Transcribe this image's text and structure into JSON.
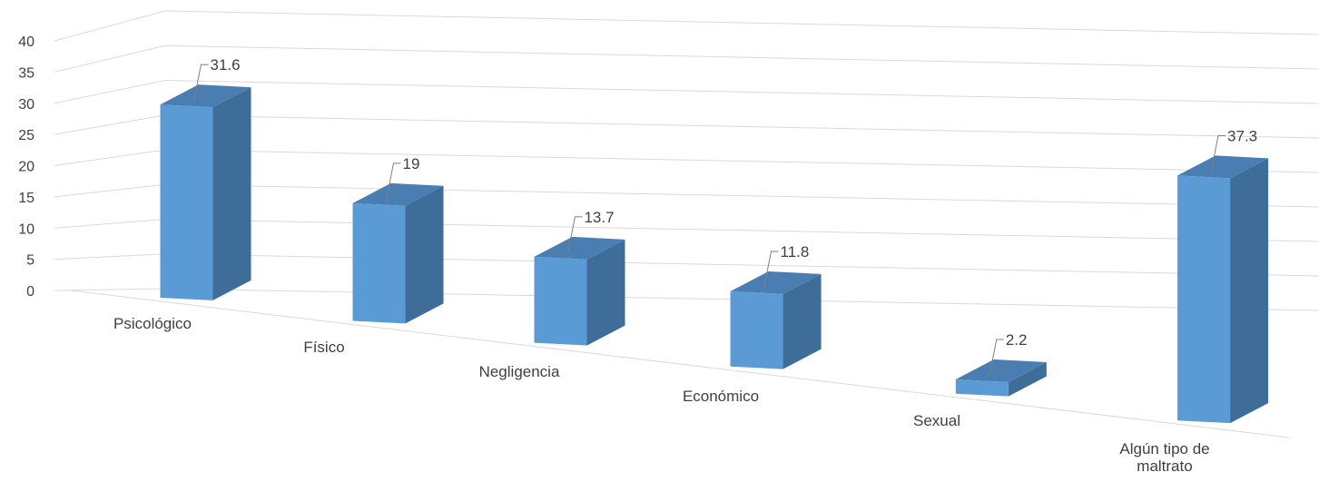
{
  "chart_data": {
    "type": "bar",
    "title": "",
    "xlabel": "",
    "ylabel": "",
    "categories": [
      "Psicológico",
      "Físico",
      "Negligencia",
      "Económico",
      "Sexual",
      "Algún tipo de maltrato"
    ],
    "values": [
      31.6,
      19,
      13.7,
      11.8,
      2.2,
      37.3
    ],
    "y_ticks": [
      "0",
      "5",
      "10",
      "15",
      "20",
      "25",
      "30",
      "35",
      "40"
    ],
    "data_labels": [
      "31.6",
      "19",
      "13.7",
      "11.8",
      "2.2",
      "37.3"
    ],
    "ylim": [
      0,
      40
    ],
    "grid": true,
    "legend": "none",
    "bar_style": "3d-column",
    "colors": {
      "bar_front": "#5B9BD5",
      "bar_side": "#3E6D9A",
      "bar_top": "#4A7EB3",
      "gridline": "#D9D9D9",
      "text": "#404040",
      "leader_line": "#7F7F7F"
    }
  }
}
